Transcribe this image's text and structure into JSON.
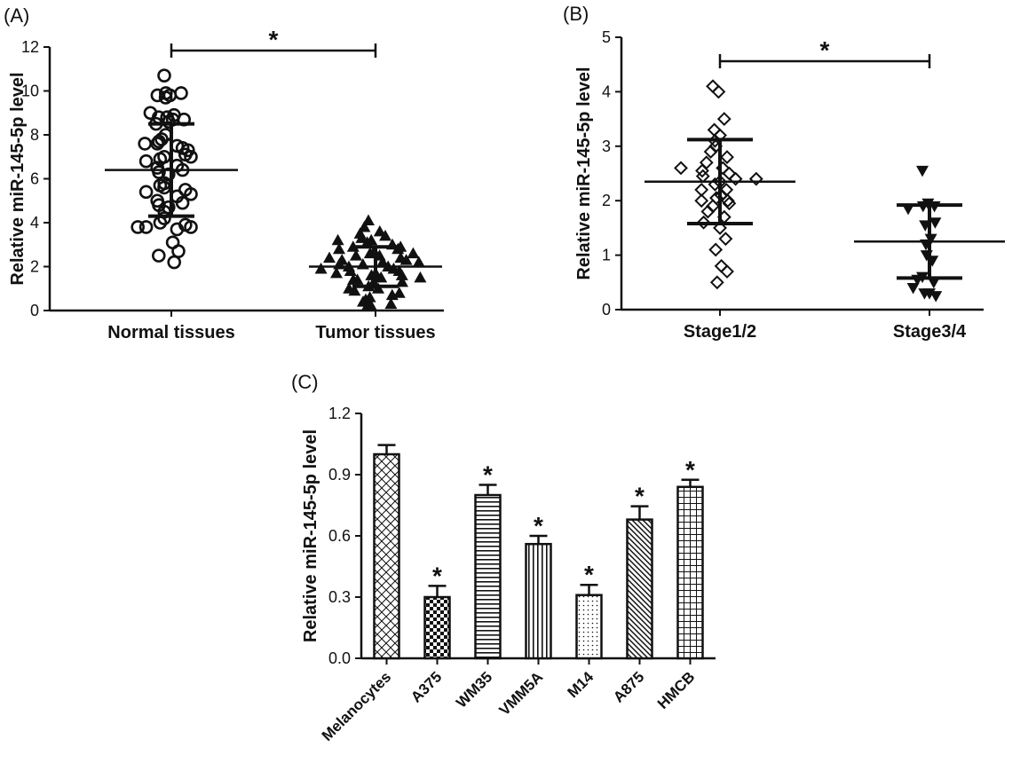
{
  "chart_data": [
    {
      "panel": "(A)",
      "type": "scatter",
      "ylabel": "Relative miR-145-5p level",
      "ylim": [
        0,
        12
      ],
      "yticks": [
        "0",
        "2",
        "4",
        "6",
        "8",
        "10",
        "12"
      ],
      "categories": [
        "Normal tissues",
        "Tumor tissues"
      ],
      "series": [
        {
          "marker": "open-circle",
          "category": "Normal tissues",
          "values": [
            10.7,
            9.8,
            9.9,
            9.7,
            9.9,
            9.8,
            8.8,
            8.7,
            8.6,
            8.8,
            8.7,
            8.9,
            9.0,
            8.5,
            8.0,
            7.8,
            7.5,
            7.6,
            7.4,
            7.7,
            7.3,
            7.6,
            7.0,
            6.9,
            7.1,
            6.8,
            7.0,
            6.6,
            6.5,
            6.4,
            6.3,
            6.2,
            5.8,
            5.6,
            5.7,
            5.5,
            5.4,
            5.3,
            5.2,
            5.0,
            4.9,
            4.8,
            4.7,
            4.5,
            4.2,
            4.0,
            3.9,
            3.8,
            3.8,
            3.7,
            3.8,
            3.1,
            2.7,
            2.5,
            2.2
          ],
          "mean": 6.4,
          "sd_low": 4.3,
          "sd_high": 8.5
        },
        {
          "marker": "filled-triangle",
          "category": "Tumor tissues",
          "values": [
            4.1,
            3.8,
            3.6,
            3.5,
            3.4,
            3.3,
            3.2,
            3.1,
            3.0,
            2.9,
            2.8,
            2.8,
            2.7,
            2.6,
            2.5,
            2.5,
            2.4,
            2.3,
            2.3,
            2.2,
            2.1,
            2.0,
            2.0,
            1.9,
            1.8,
            1.8,
            1.7,
            1.6,
            1.5,
            1.4,
            1.3,
            1.2,
            1.1,
            1.0,
            0.9,
            0.8,
            0.6,
            0.5,
            0.3,
            0.2,
            0.2,
            1.4,
            1.6,
            2.1,
            2.4,
            2.6,
            2.2,
            1.9,
            1.7,
            1.5,
            2.9,
            3.2,
            0.4,
            0.7,
            1.0
          ],
          "mean": 2.0,
          "sd_low": 1.1,
          "sd_high": 2.9
        }
      ],
      "significance": [
        {
          "groups": [
            "Normal tissues",
            "Tumor tissues"
          ],
          "label": "*"
        }
      ]
    },
    {
      "panel": "(B)",
      "type": "scatter",
      "ylabel": "Relative miR-145-5p level",
      "ylim": [
        0,
        5
      ],
      "yticks": [
        "0",
        "1",
        "2",
        "3",
        "4",
        "5"
      ],
      "categories": [
        "Stage1/2",
        "Stage3/4"
      ],
      "series": [
        {
          "marker": "open-diamond",
          "category": "Stage1/2",
          "values": [
            4.1,
            4.0,
            3.5,
            3.3,
            3.2,
            3.1,
            3.0,
            2.9,
            2.8,
            2.7,
            2.6,
            2.55,
            2.5,
            2.45,
            2.4,
            2.35,
            2.3,
            2.2,
            2.1,
            2.05,
            2.0,
            2.0,
            1.9,
            1.8,
            1.7,
            1.6,
            1.5,
            1.3,
            1.1,
            0.8,
            0.7,
            0.5,
            2.2,
            2.6,
            1.95,
            2.4
          ],
          "mean": 2.35,
          "sd_low": 1.58,
          "sd_high": 3.12
        },
        {
          "marker": "filled-inverted-triangle",
          "category": "Stage3/4",
          "values": [
            2.55,
            1.95,
            1.9,
            1.9,
            1.85,
            1.6,
            1.55,
            1.3,
            1.2,
            1.0,
            0.9,
            0.6,
            0.55,
            0.5,
            0.4,
            0.3,
            0.3,
            0.25
          ],
          "mean": 1.25,
          "sd_low": 0.58,
          "sd_high": 1.92
        }
      ],
      "significance": [
        {
          "groups": [
            "Stage1/2",
            "Stage3/4"
          ],
          "label": "*"
        }
      ]
    },
    {
      "panel": "(C)",
      "type": "bar",
      "ylabel": "Relative miR-145-5p level",
      "ylim": [
        0,
        1.2
      ],
      "yticks": [
        "0.0",
        "0.3",
        "0.6",
        "0.9",
        "1.2"
      ],
      "categories": [
        "Melanocytes",
        "A375",
        "WM35",
        "VMM5A",
        "M14",
        "A875",
        "HMCB"
      ],
      "values": [
        1.0,
        0.3,
        0.8,
        0.56,
        0.31,
        0.68,
        0.84
      ],
      "errors": [
        0.045,
        0.055,
        0.05,
        0.04,
        0.05,
        0.065,
        0.035
      ],
      "patterns": [
        "cross",
        "checker",
        "hstripe",
        "vstripe",
        "dots",
        "diag",
        "grid"
      ],
      "annotations": [
        "",
        "*",
        "*",
        "*",
        "*",
        "*",
        "*"
      ]
    }
  ]
}
